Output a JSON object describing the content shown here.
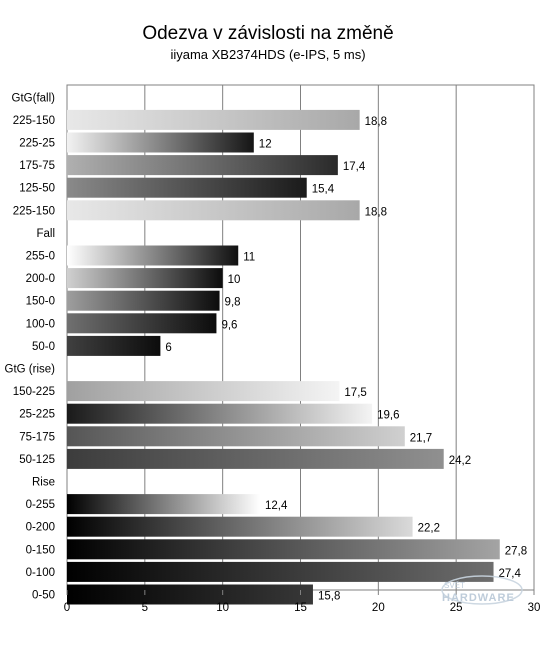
{
  "chart_data": {
    "type": "bar",
    "orientation": "horizontal",
    "title": "Odezva v závislosti na změně",
    "subtitle": "iiyama XB2374HDS  (e-IPS, 5 ms)",
    "xlim": [
      0,
      30
    ],
    "xticks": [
      0,
      5,
      10,
      15,
      20,
      25,
      30
    ],
    "grid": true,
    "categories": [
      "GtG(fall)",
      "225-150",
      "225-25",
      "175-75",
      "125-50",
      "225-150",
      "Fall",
      "255-0",
      "200-0",
      "150-0",
      "100-0",
      "50-0",
      "GtG (rise)",
      "150-225",
      "25-225",
      "75-175",
      "50-125",
      "Rise",
      "0-255",
      "0-200",
      "0-150",
      "0-100",
      "0-50"
    ],
    "values": [
      null,
      18.8,
      12,
      17.4,
      15.4,
      18.8,
      null,
      11,
      10,
      9.8,
      9.6,
      6,
      null,
      17.5,
      19.6,
      21.7,
      24.2,
      null,
      12.4,
      22.2,
      27.8,
      27.4,
      15.8
    ],
    "value_labels": [
      "",
      "18,8",
      "12",
      "17,4",
      "15,4",
      "18,8",
      "",
      "11",
      "10",
      "9,8",
      "9,6",
      "6",
      "",
      "17,5",
      "19,6",
      "21,7",
      "24,2",
      "",
      "12,4",
      "22,2",
      "27,8",
      "27,4",
      "15,8"
    ],
    "bar_gradients": [
      null,
      [
        "#e8e8e8",
        "#a8a8a8"
      ],
      [
        "#f2f2f2",
        "#151515"
      ],
      [
        "#b0b0b0",
        "#2a2a2a"
      ],
      [
        "#8a8a8a",
        "#1a1a1a"
      ],
      [
        "#e8e8e8",
        "#a8a8a8"
      ],
      null,
      [
        "#ffffff",
        "#101010"
      ],
      [
        "#d0d0d0",
        "#0c0c0c"
      ],
      [
        "#9e9e9e",
        "#0c0c0c"
      ],
      [
        "#707070",
        "#0c0c0c"
      ],
      [
        "#404040",
        "#0c0c0c"
      ],
      null,
      [
        "#a0a0a0",
        "#f4f4f4"
      ],
      [
        "#1a1a1a",
        "#f4f4f4"
      ],
      [
        "#555555",
        "#d0d0d0"
      ],
      [
        "#3c3c3c",
        "#909090"
      ],
      null,
      [
        "#000000",
        "#ffffff"
      ],
      [
        "#000000",
        "#dadada"
      ],
      [
        "#000000",
        "#a4a4a4"
      ],
      [
        "#000000",
        "#6e6e6e"
      ],
      [
        "#000000",
        "#383838"
      ]
    ]
  },
  "watermark": {
    "line1": "SVĚT",
    "line2": "HARDWARE"
  }
}
